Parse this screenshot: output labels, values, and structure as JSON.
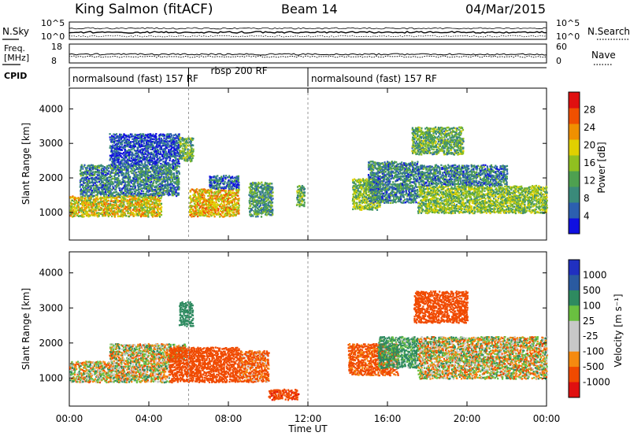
{
  "header": {
    "station": "King Salmon (fitACF)",
    "beam": "Beam 14",
    "date": "04/Mar/2015"
  },
  "top_panels": {
    "nsky_label": "N.Sky",
    "nsearch_label": "N.Search",
    "nsky_ticks": [
      "10^5",
      "10^0"
    ],
    "nsearch_ticks": [
      "10^5",
      "10^0"
    ],
    "freq_label_1": "Freq.",
    "freq_label_2": "[MHz]",
    "freq_ticks": [
      "18",
      "8"
    ],
    "nave_label": "Nave",
    "nave_ticks": [
      "60",
      "0"
    ],
    "cpid_label": "CPID",
    "cpid_segments": [
      {
        "name": "normalsound (fast) 157 RF",
        "start_hour": 0,
        "end_hour": 6
      },
      {
        "name": "rbsp 200 RF",
        "start_hour": 6,
        "end_hour": 12
      },
      {
        "name": "normalsound (fast) 157 RF",
        "start_hour": 12,
        "end_hour": 24
      }
    ]
  },
  "colors": {
    "power": [
      "#1010e0",
      "#2c5fb0",
      "#3a8a7a",
      "#4ea050",
      "#90c020",
      "#e0d000",
      "#f09000",
      "#f05000",
      "#e01010"
    ],
    "velocity": [
      "#e01010",
      "#f04a00",
      "#f58a10",
      "#c8c8c8",
      "#c8c8c8",
      "#6ac040",
      "#2e8a60",
      "#2a5aa0",
      "#2030c0"
    ]
  },
  "chart_data": [
    {
      "type": "heatmap",
      "ylabel": "Slant Range [km]",
      "x_unit": "UT hours",
      "xlim": [
        0,
        24
      ],
      "ylim": [
        200,
        4600
      ],
      "y_ticks": [
        "1000",
        "2000",
        "3000",
        "4000"
      ],
      "colorbar": {
        "label": "Power [dB]",
        "ticks": [
          "4",
          "8",
          "12",
          "16",
          "20",
          "24",
          "28"
        ],
        "range": [
          0,
          30
        ]
      },
      "regions": [
        {
          "t_start": 0.0,
          "t_end": 4.6,
          "r_start": 900,
          "r_end": 1500,
          "level": 18
        },
        {
          "t_start": 0.5,
          "t_end": 5.5,
          "r_start": 1500,
          "r_end": 2400,
          "level": 8
        },
        {
          "t_start": 2.0,
          "t_end": 5.5,
          "r_start": 2400,
          "r_end": 3300,
          "level": 4
        },
        {
          "t_start": 5.5,
          "t_end": 6.2,
          "r_start": 2500,
          "r_end": 3200,
          "level": 12
        },
        {
          "t_start": 6.0,
          "t_end": 8.5,
          "r_start": 900,
          "r_end": 1700,
          "level": 20
        },
        {
          "t_start": 7.0,
          "t_end": 8.5,
          "r_start": 1700,
          "r_end": 2100,
          "level": 6
        },
        {
          "t_start": 9.0,
          "t_end": 10.2,
          "r_start": 900,
          "r_end": 1900,
          "level": 10
        },
        {
          "t_start": 11.4,
          "t_end": 11.8,
          "r_start": 1200,
          "r_end": 1800,
          "level": 12
        },
        {
          "t_start": 14.2,
          "t_end": 15.6,
          "r_start": 1100,
          "r_end": 2000,
          "level": 14
        },
        {
          "t_start": 15.0,
          "t_end": 17.5,
          "r_start": 1300,
          "r_end": 2500,
          "level": 8
        },
        {
          "t_start": 17.2,
          "t_end": 19.8,
          "r_start": 2700,
          "r_end": 3500,
          "level": 12
        },
        {
          "t_start": 17.5,
          "t_end": 24.0,
          "r_start": 1000,
          "r_end": 1800,
          "level": 14
        },
        {
          "t_start": 17.5,
          "t_end": 22.0,
          "r_start": 1800,
          "r_end": 2400,
          "level": 8
        }
      ]
    },
    {
      "type": "heatmap",
      "ylabel": "Slant Range [km]",
      "xlabel": "Time UT",
      "xlim": [
        0,
        24
      ],
      "ylim": [
        200,
        4600
      ],
      "x_ticks": [
        "00:00",
        "04:00",
        "08:00",
        "12:00",
        "16:00",
        "20:00",
        "00:00"
      ],
      "y_ticks": [
        "1000",
        "2000",
        "3000",
        "4000"
      ],
      "colorbar": {
        "label": "Velocity [m s⁻¹]",
        "ticks": [
          "1000",
          "500",
          "100",
          "25",
          "-25",
          "-100",
          "-500",
          "-1000"
        ],
        "range": [
          -1000,
          1000
        ]
      },
      "regions": [
        {
          "t_start": 0.0,
          "t_end": 5.0,
          "r_start": 900,
          "r_end": 1500,
          "level": 0
        },
        {
          "t_start": 2.0,
          "t_end": 5.8,
          "r_start": 1500,
          "r_end": 2000,
          "level": 0
        },
        {
          "t_start": 5.5,
          "t_end": 6.2,
          "r_start": 2500,
          "r_end": 3200,
          "level": 300
        },
        {
          "t_start": 5.0,
          "t_end": 8.5,
          "r_start": 900,
          "r_end": 1900,
          "level": -300
        },
        {
          "t_start": 8.5,
          "t_end": 10.0,
          "r_start": 900,
          "r_end": 1800,
          "level": -150
        },
        {
          "t_start": 10.0,
          "t_end": 11.5,
          "r_start": 400,
          "r_end": 700,
          "level": -400
        },
        {
          "t_start": 14.0,
          "t_end": 16.5,
          "r_start": 1100,
          "r_end": 2000,
          "level": -200
        },
        {
          "t_start": 15.5,
          "t_end": 17.5,
          "r_start": 1300,
          "r_end": 2200,
          "level": 150
        },
        {
          "t_start": 17.3,
          "t_end": 20.0,
          "r_start": 2600,
          "r_end": 3500,
          "level": -300
        },
        {
          "t_start": 17.5,
          "t_end": 24.0,
          "r_start": 1000,
          "r_end": 2200,
          "level": 0
        }
      ]
    }
  ]
}
